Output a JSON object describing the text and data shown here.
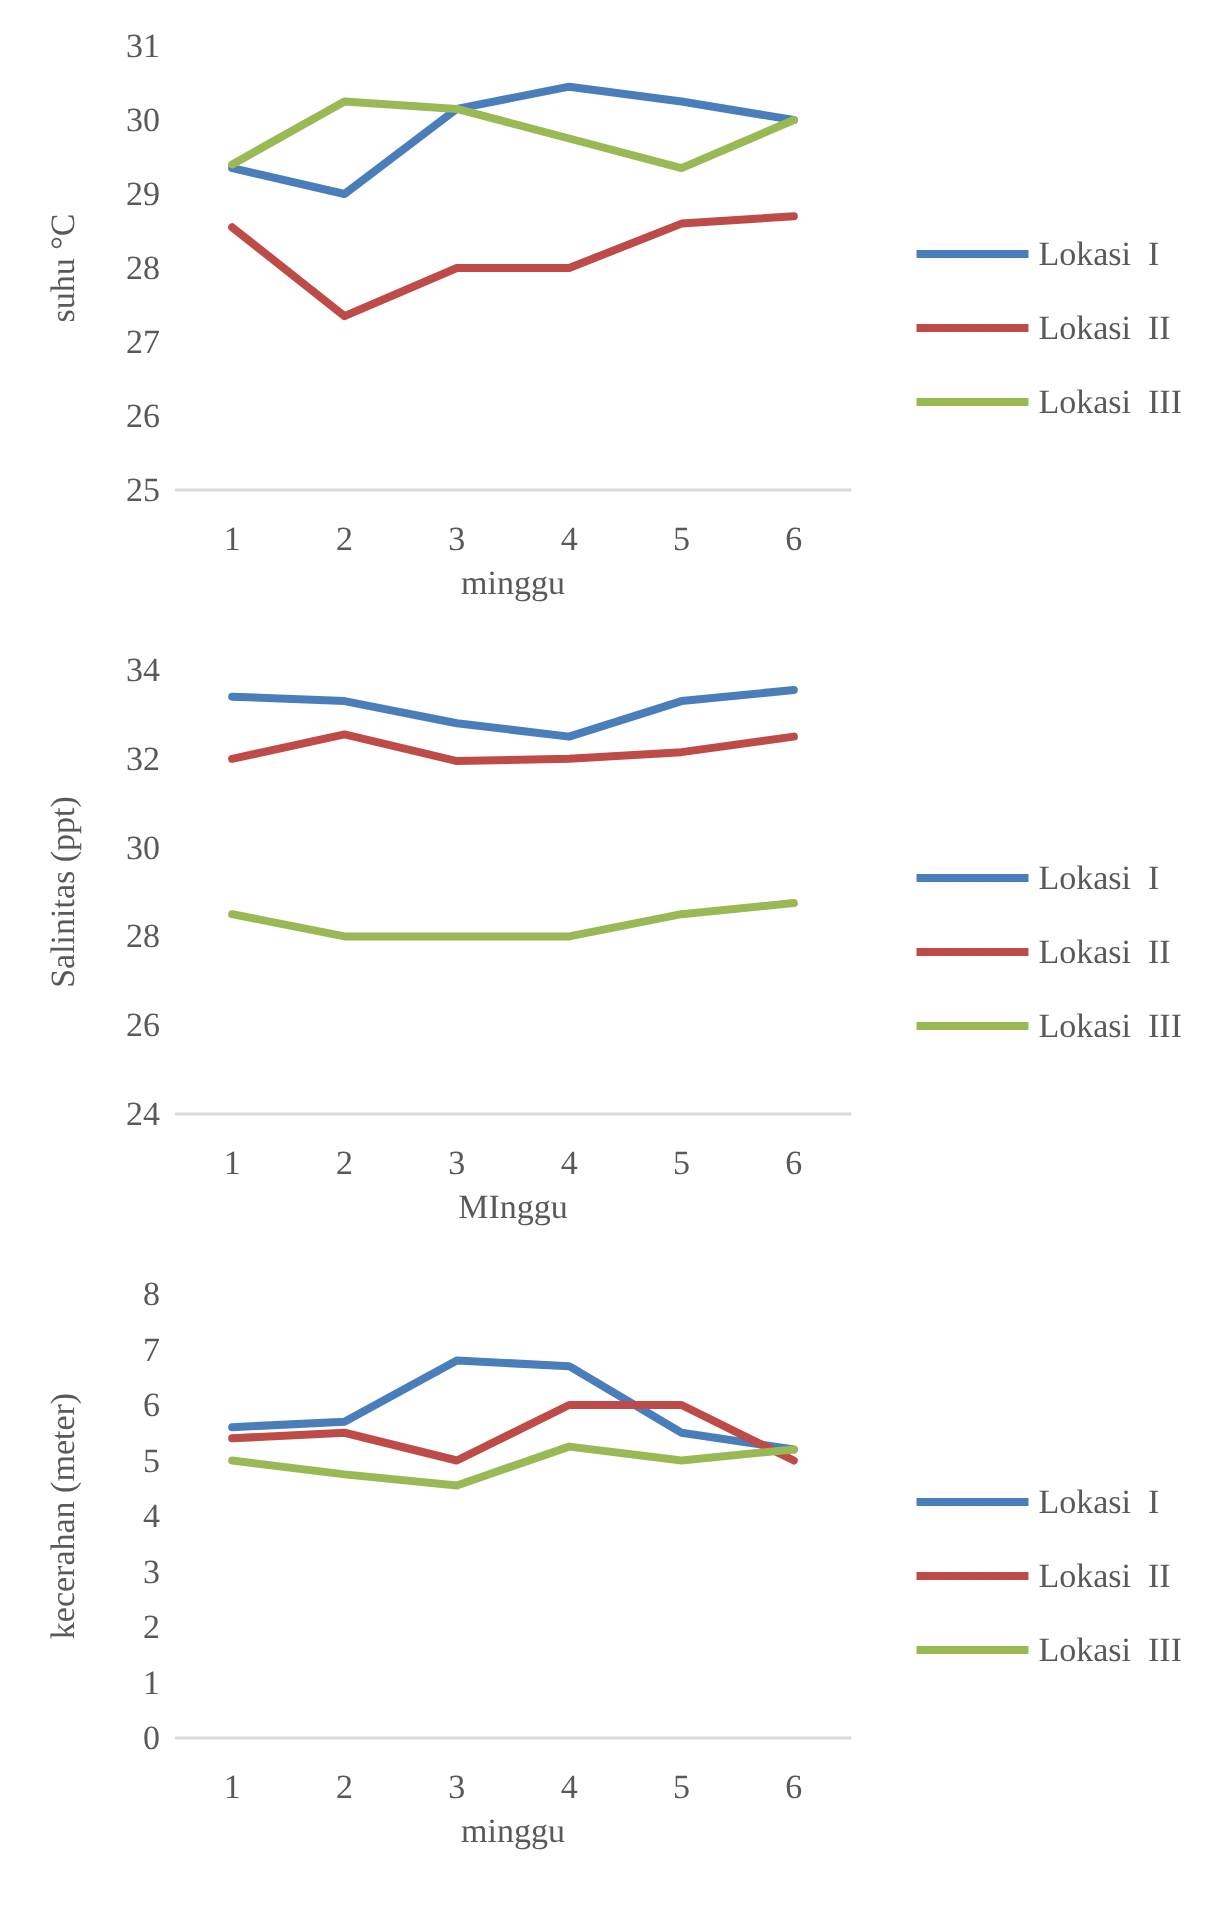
{
  "chart_data": [
    {
      "type": "line",
      "ylabel": "suhu °C",
      "xlabel": "minggu",
      "categories": [
        "1",
        "2",
        "3",
        "4",
        "5",
        "6"
      ],
      "ylim": [
        25,
        31
      ],
      "yticks": [
        25,
        26,
        27,
        28,
        29,
        30,
        31
      ],
      "grid": false,
      "legend": "right",
      "marker": "none",
      "series": [
        {
          "name": "Lokasi  I",
          "color": "#4a7ebb",
          "values": [
            29.35,
            29.0,
            30.15,
            30.45,
            30.25,
            30.0
          ]
        },
        {
          "name": "Lokasi  II",
          "color": "#be4b48",
          "values": [
            28.55,
            27.35,
            28.0,
            28.0,
            28.6,
            28.7
          ]
        },
        {
          "name": "Lokasi  III",
          "color": "#98b954",
          "values": [
            29.4,
            30.25,
            30.15,
            29.75,
            29.35,
            30.0
          ]
        }
      ]
    },
    {
      "type": "line",
      "ylabel": "Salinitas (ppt)",
      "xlabel": "MInggu",
      "categories": [
        "1",
        "2",
        "3",
        "4",
        "5",
        "6"
      ],
      "ylim": [
        24,
        34
      ],
      "yticks": [
        24,
        26,
        28,
        30,
        32,
        34
      ],
      "grid": false,
      "legend": "right",
      "marker": "none",
      "series": [
        {
          "name": "Lokasi  I",
          "color": "#4a7ebb",
          "values": [
            33.4,
            33.3,
            32.8,
            32.5,
            33.3,
            33.55
          ]
        },
        {
          "name": "Lokasi  II",
          "color": "#be4b48",
          "values": [
            32.0,
            32.55,
            31.95,
            32.0,
            32.15,
            32.5
          ]
        },
        {
          "name": "Lokasi  III",
          "color": "#98b954",
          "values": [
            28.5,
            28.0,
            28.0,
            28.0,
            28.5,
            28.75
          ]
        }
      ]
    },
    {
      "type": "line",
      "ylabel": "kecerahan (meter)",
      "xlabel": "minggu",
      "categories": [
        "1",
        "2",
        "3",
        "4",
        "5",
        "6"
      ],
      "ylim": [
        0,
        8
      ],
      "yticks": [
        0,
        1,
        2,
        3,
        4,
        5,
        6,
        7,
        8
      ],
      "grid": false,
      "legend": "right",
      "marker": "none",
      "series": [
        {
          "name": "Lokasi  I",
          "color": "#4a7ebb",
          "values": [
            5.6,
            5.7,
            6.8,
            6.7,
            5.5,
            5.2
          ]
        },
        {
          "name": "Lokasi  II",
          "color": "#be4b48",
          "values": [
            5.4,
            5.5,
            5.0,
            6.0,
            6.0,
            5.0
          ]
        },
        {
          "name": "Lokasi  III",
          "color": "#98b954",
          "values": [
            5.0,
            4.75,
            4.55,
            5.25,
            5.0,
            5.2
          ]
        }
      ]
    }
  ]
}
